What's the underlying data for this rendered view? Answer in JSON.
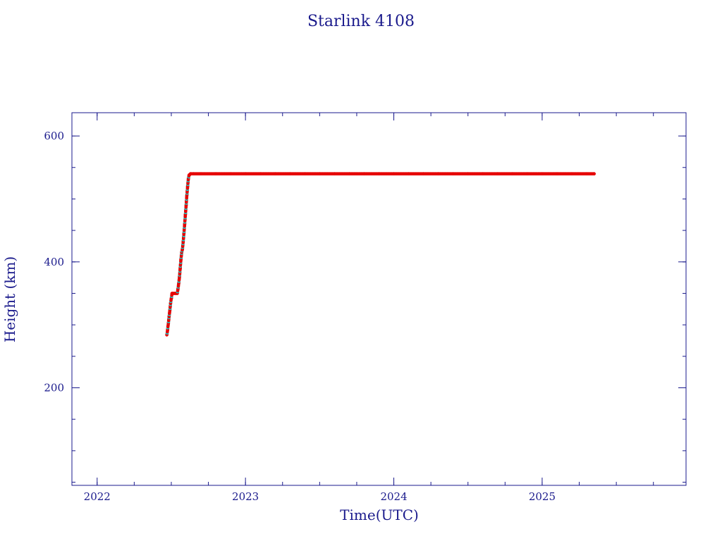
{
  "chart_data": {
    "type": "scatter",
    "title": "Starlink 4108",
    "xlabel": "Time(UTC)",
    "ylabel": "Height (km)",
    "xlim": [
      2021.83,
      2025.97
    ],
    "ylim": [
      45,
      637
    ],
    "x_ticks": [
      2022,
      2023,
      2024,
      2025
    ],
    "x_tick_labels": [
      "2022",
      "2023",
      "2024",
      "2025"
    ],
    "x_minor_step": 0.25,
    "y_ticks": [
      200,
      400,
      600
    ],
    "y_tick_labels": [
      "200",
      "400",
      "600"
    ],
    "y_minor_step": 50,
    "grid": false,
    "colors": {
      "frame": "#1a1a8c",
      "points": "#e60000",
      "points_alt": "#00e5e5"
    },
    "series": [
      {
        "x": [
          2022.47,
          2022.475,
          2022.48,
          2022.485,
          2022.49,
          2022.495,
          2022.5,
          2022.505,
          2022.51,
          2022.52,
          2022.53,
          2022.54,
          2022.545,
          2022.55,
          2022.555,
          2022.56,
          2022.565,
          2022.57,
          2022.575,
          2022.58,
          2022.585,
          2022.59,
          2022.595,
          2022.6,
          2022.605,
          2022.61,
          2022.615,
          2022.62,
          2022.625,
          2022.63,
          2022.65,
          2022.7,
          2022.8,
          2022.9,
          2023.0,
          2023.1,
          2023.2,
          2023.3,
          2023.4,
          2023.5,
          2023.6,
          2023.7,
          2023.8,
          2023.9,
          2024.0,
          2024.1,
          2024.2,
          2024.3,
          2024.4,
          2024.5,
          2024.6,
          2024.7,
          2024.8,
          2024.9,
          2025.0,
          2025.1,
          2025.2,
          2025.3,
          2025.35
        ],
        "y": [
          284,
          292,
          302,
          313,
          323,
          334,
          342,
          350,
          350,
          350,
          350,
          350,
          357,
          366,
          376,
          390,
          404,
          415,
          420,
          432,
          445,
          460,
          475,
          490,
          506,
          520,
          532,
          538,
          539,
          540,
          540,
          540,
          540,
          540,
          540,
          540,
          540,
          540,
          540,
          540,
          540,
          540,
          540,
          540,
          540,
          540,
          540,
          540,
          540,
          540,
          540,
          540,
          540,
          540,
          540,
          540,
          540,
          540,
          540
        ]
      }
    ]
  }
}
